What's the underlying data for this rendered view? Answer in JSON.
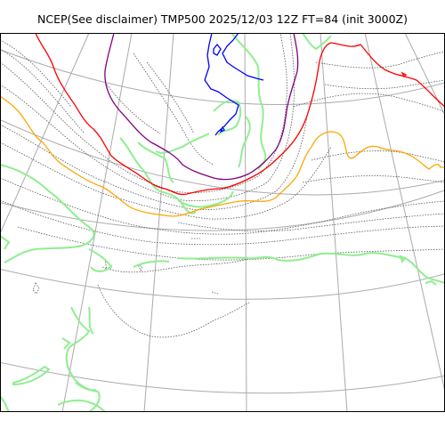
{
  "title": "NCEP(See disclaimer) TMP500 2025/12/03 12Z FT=84 (init 3000Z)",
  "colors": {
    "graticule": "#aaaaaa",
    "coastline": "#90ee90",
    "isotherm": "#555555",
    "contour_blue": "#0000ff",
    "contour_purple": "#800080",
    "contour_red": "#ff0000",
    "contour_orange": "#ffa500",
    "frame": "#000000"
  }
}
